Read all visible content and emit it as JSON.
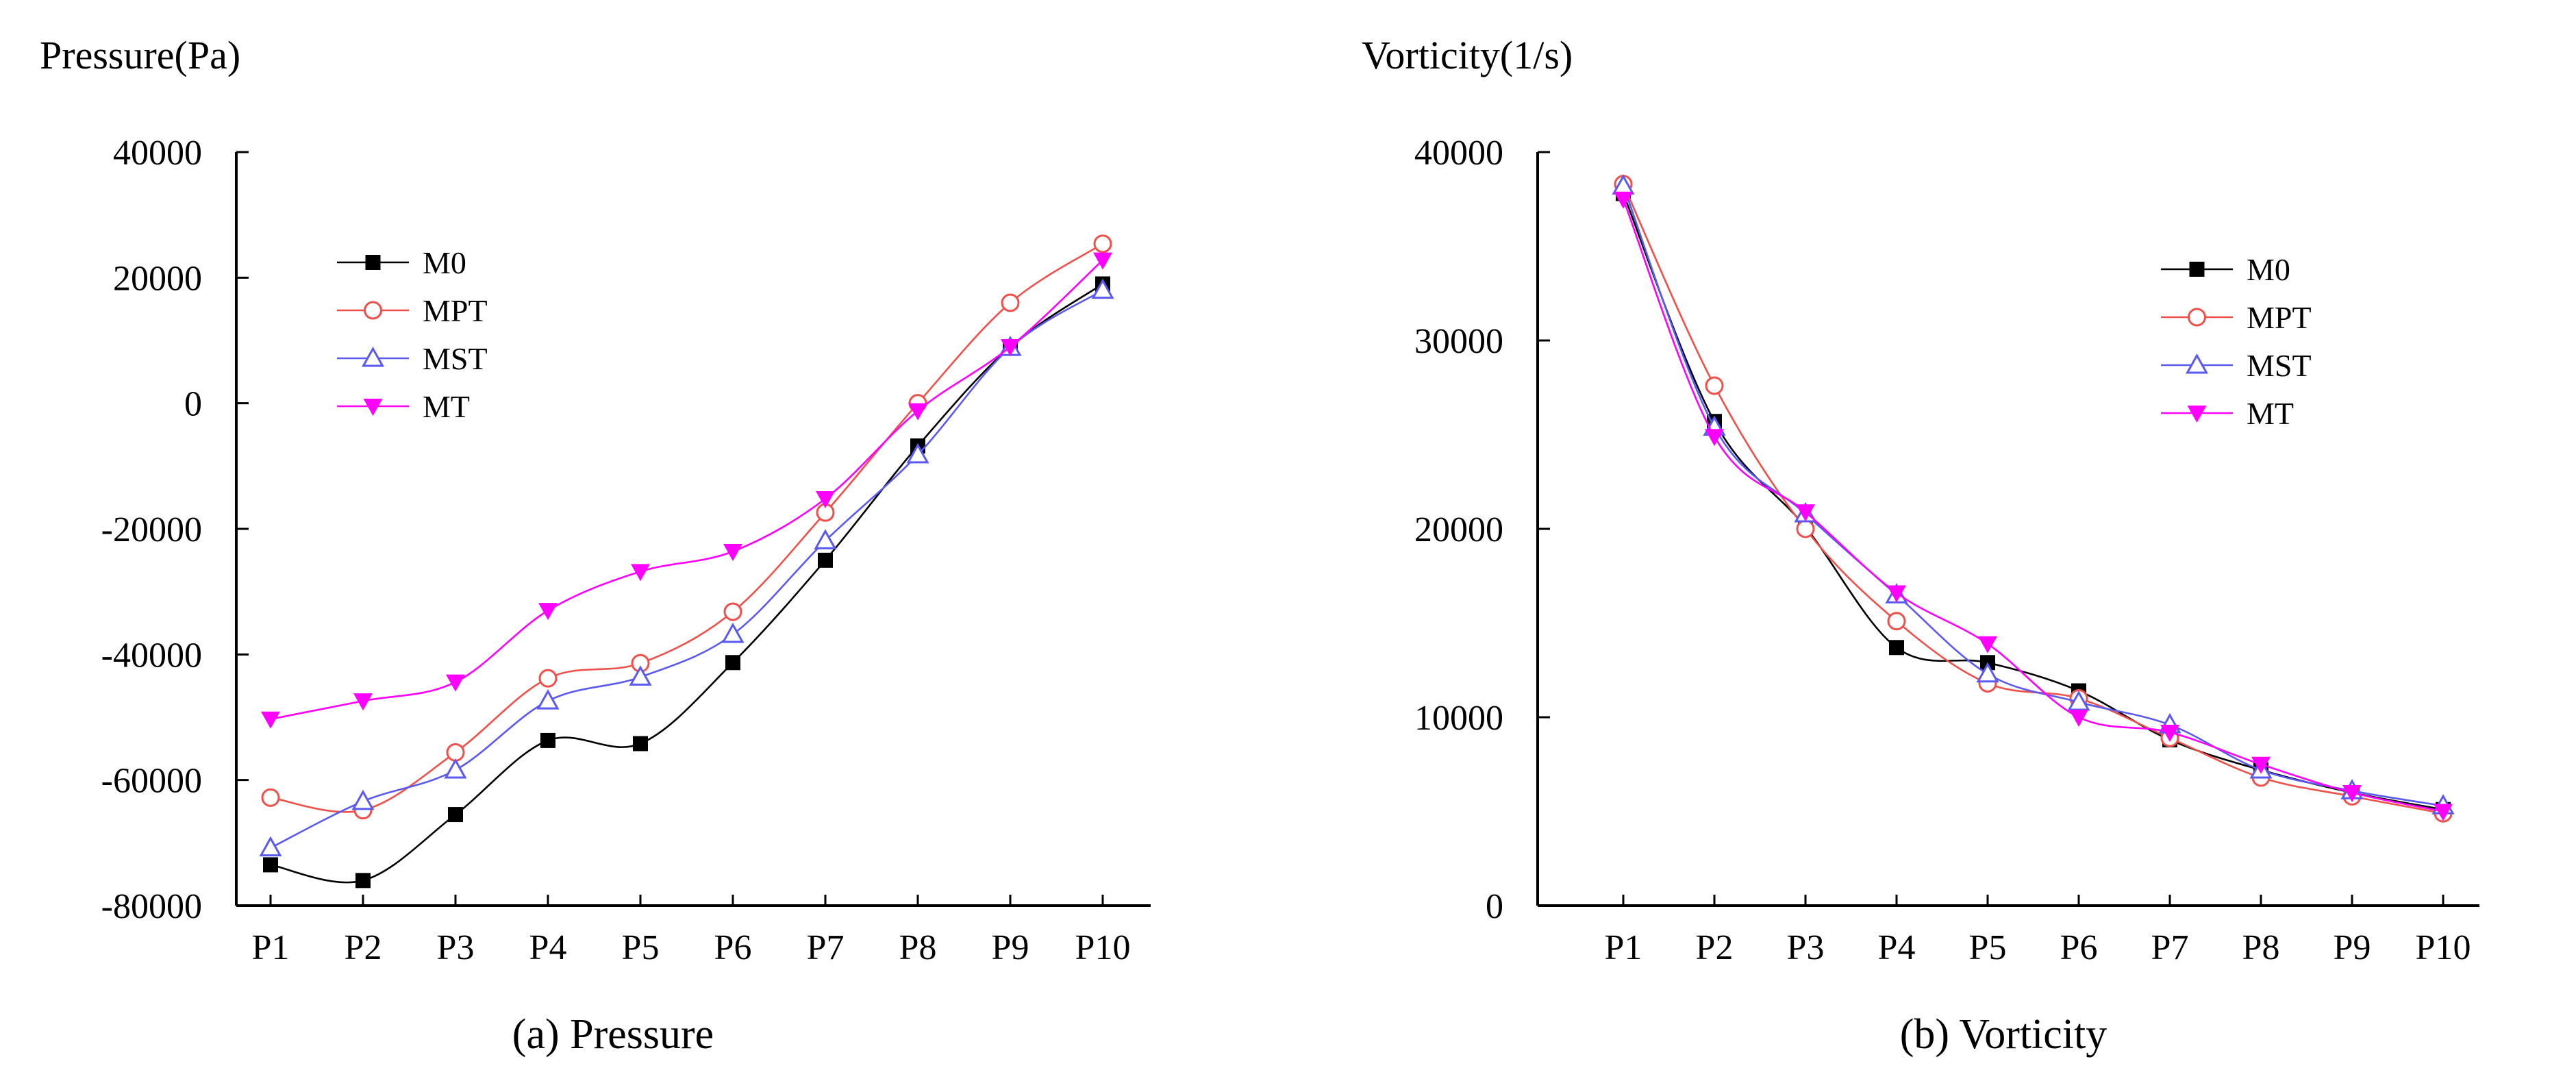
{
  "chart_data": [
    {
      "type": "line",
      "title": "(a) Pressure",
      "ylabel": "Pressure(Pa)",
      "xlabel": "",
      "categories": [
        "P1",
        "P2",
        "P3",
        "P4",
        "P5",
        "P6",
        "P7",
        "P8",
        "P9",
        "P10"
      ],
      "ylim": [
        -80000,
        40000
      ],
      "yticks": [
        -80000,
        -60000,
        -40000,
        -20000,
        0,
        20000,
        40000
      ],
      "yticklabels": [
        "-80000",
        "-60000",
        "-40000",
        "-20000",
        "0",
        "20000",
        "40000"
      ],
      "legend_position": "upper-left",
      "grid": false,
      "series": [
        {
          "name": "M0",
          "values": [
            -73500,
            -76000,
            -65500,
            -53700,
            -54200,
            -41300,
            -25000,
            -6800,
            9000,
            19000
          ]
        },
        {
          "name": "MPT",
          "values": [
            -62800,
            -64800,
            -55600,
            -43800,
            -41400,
            -33200,
            -17400,
            0,
            16000,
            25400
          ]
        },
        {
          "name": "MST",
          "values": [
            -70800,
            -63400,
            -58400,
            -47400,
            -43600,
            -36800,
            -21900,
            -8200,
            8900,
            18000
          ]
        },
        {
          "name": "MT",
          "values": [
            -50300,
            -47400,
            -44400,
            -33000,
            -26800,
            -23600,
            -15200,
            -1200,
            9000,
            22800
          ]
        }
      ]
    },
    {
      "type": "line",
      "title": "(b) Vorticity",
      "ylabel": "Vorticity(1/s)",
      "xlabel": "",
      "categories": [
        "P1",
        "P2",
        "P3",
        "P4",
        "P5",
        "P6",
        "P7",
        "P8",
        "P9",
        "P10"
      ],
      "ylim": [
        0,
        40000
      ],
      "yticks": [
        0,
        10000,
        20000,
        30000,
        40000
      ],
      "yticklabels": [
        "0",
        "10000",
        "20000",
        "30000",
        "40000"
      ],
      "legend_position": "upper-right",
      "grid": false,
      "series": [
        {
          "name": "M0",
          "values": [
            37800,
            25700,
            20100,
            13700,
            12900,
            11400,
            8800,
            7200,
            6000,
            5100
          ]
        },
        {
          "name": "MPT",
          "values": [
            38300,
            27600,
            20000,
            15100,
            11800,
            11000,
            8900,
            6800,
            5800,
            4900
          ]
        },
        {
          "name": "MST",
          "values": [
            38200,
            25400,
            20800,
            16500,
            12300,
            10800,
            9600,
            7200,
            6100,
            5300
          ]
        },
        {
          "name": "MT",
          "values": [
            37500,
            24900,
            20900,
            16600,
            13900,
            10000,
            9200,
            7500,
            6000,
            5000
          ]
        }
      ]
    }
  ],
  "styles": {
    "M0": {
      "color": "#000000",
      "marker": "square-filled"
    },
    "MPT": {
      "color": "#f0504a",
      "marker": "circle-open"
    },
    "MST": {
      "color": "#5a5af0",
      "marker": "triangle-open"
    },
    "MT": {
      "color": "#ff00ff",
      "marker": "triangle-down-filled"
    }
  }
}
